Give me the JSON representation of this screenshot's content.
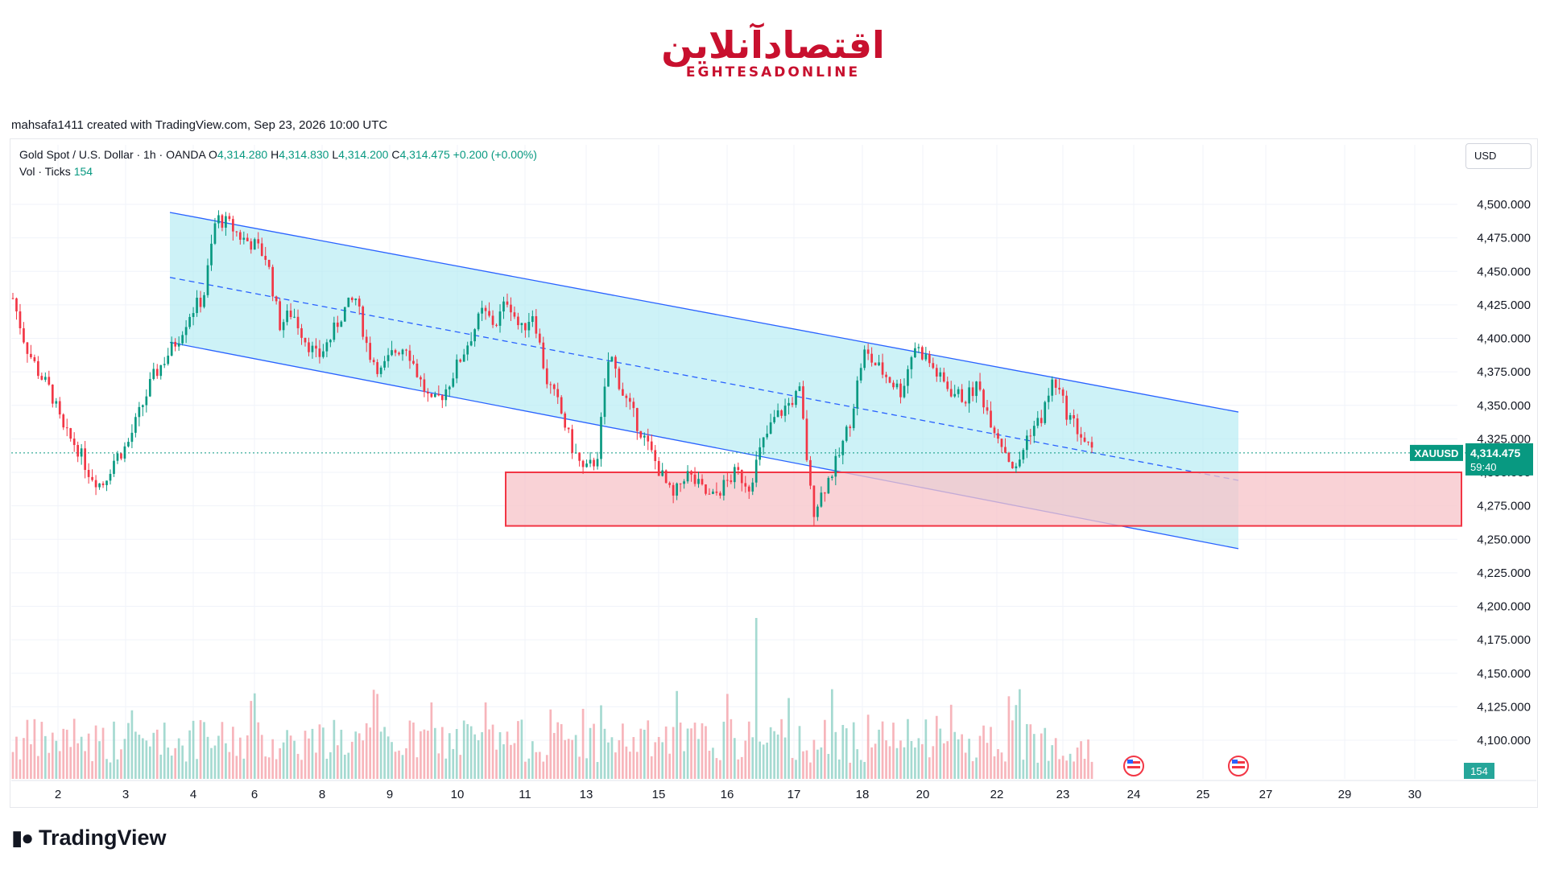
{
  "logo": {
    "text_fa": "اقتصادآنلاین",
    "text_en": "EGHTESADONLINE"
  },
  "credit": "mahsafa1411 created with TradingView.com, Sep 23, 2026 10:00 UTC",
  "legend": {
    "symbol": "Gold Spot / U.S. Dollar · 1h · OANDA",
    "o_label": "O",
    "o": "4,314.280",
    "h_label": "H",
    "h": "4,314.830",
    "l_label": "L",
    "l": "4,314.200",
    "c_label": "C",
    "c": "4,314.475",
    "change": "+0.200 (+0.00%)",
    "vol_label": "Vol · Ticks",
    "vol": "154"
  },
  "currency": "USD",
  "price_tag": {
    "symbol": "XAUUSD",
    "price": "4,314.475",
    "countdown": "59:40"
  },
  "vol_tag": "154",
  "brand": "TradingView",
  "colors": {
    "up": "#089981",
    "down": "#f23645",
    "channel_fill": "#b2ebf2",
    "channel_line": "#2962ff",
    "zone_fill": "#f7c3c8",
    "zone_border": "#f23645"
  },
  "chart_data": {
    "type": "candlestick",
    "title": "Gold Spot / U.S. Dollar · 1h · OANDA",
    "y_ticks": [
      "4,500.000",
      "4,475.000",
      "4,450.000",
      "4,425.000",
      "4,400.000",
      "4,375.000",
      "4,350.000",
      "4,325.000",
      "4,300.000",
      "4,275.000",
      "4,250.000",
      "4,225.000",
      "4,200.000",
      "4,175.000",
      "4,150.000",
      "4,125.000",
      "4,100.000"
    ],
    "ylim": [
      4070,
      4520
    ],
    "x_ticks": [
      "2",
      "3",
      "4",
      "6",
      "8",
      "9",
      "10",
      "11",
      "13",
      "15",
      "16",
      "17",
      "18",
      "20",
      "22",
      "23",
      "24",
      "25",
      "27",
      "29",
      "30"
    ],
    "last_price": 4314.475,
    "closes_approx": [
      4430,
      4395,
      4375,
      4360,
      4330,
      4320,
      4300,
      4290,
      4310,
      4320,
      4345,
      4370,
      4385,
      4400,
      4420,
      4430,
      4490,
      4485,
      4475,
      4470,
      4460,
      4410,
      4420,
      4400,
      4385,
      4400,
      4420,
      4430,
      4390,
      4375,
      4390,
      4395,
      4370,
      4350,
      4360,
      4380,
      4400,
      4420,
      4410,
      4430,
      4405,
      4420,
      4370,
      4350,
      4320,
      4300,
      4310,
      4390,
      4360,
      4340,
      4320,
      4300,
      4280,
      4300,
      4290,
      4280,
      4290,
      4300,
      4290,
      4320,
      4340,
      4350,
      4360,
      4270,
      4290,
      4310,
      4340,
      4390,
      4380,
      4370,
      4360,
      4395,
      4385,
      4370,
      4360,
      4355,
      4365,
      4340,
      4320,
      4300,
      4330,
      4340,
      4370,
      4345,
      4330,
      4314
    ]
  },
  "drawings": {
    "channel": {
      "upper": [
        [
          4493,
          "Sep 3"
        ],
        [
          4345,
          "Sep 26"
        ]
      ],
      "lower": [
        [
          4397,
          "Sep 3"
        ],
        [
          4243,
          "Sep 26"
        ]
      ],
      "mid": "dashed"
    },
    "support_zone": {
      "top": 4300,
      "bottom": 4260
    }
  }
}
